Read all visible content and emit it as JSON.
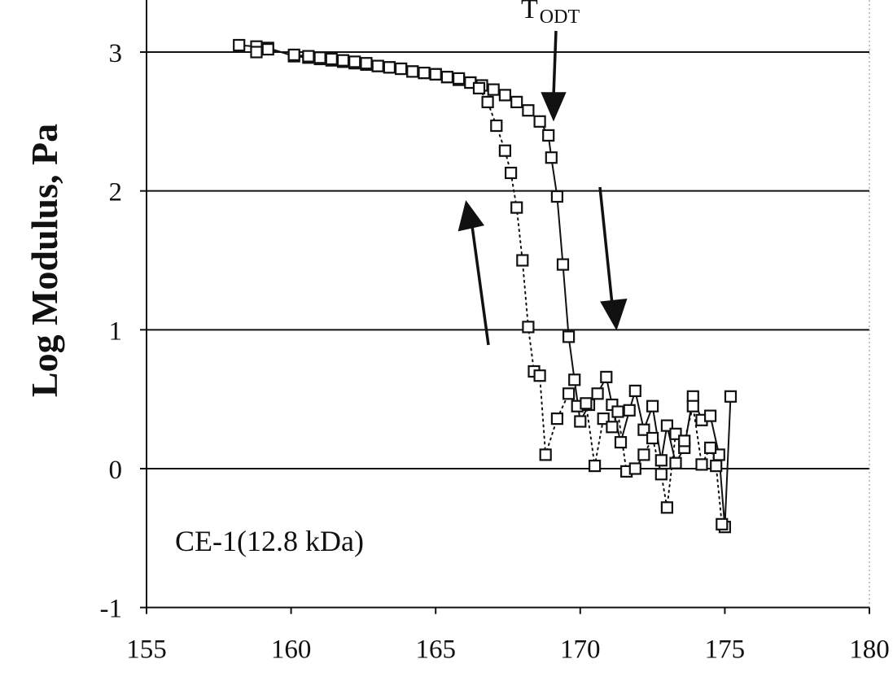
{
  "chart_data": {
    "type": "scatter",
    "ylabel": "Log Modulus, Pa",
    "xlabel": "",
    "xlim": [
      155,
      180
    ],
    "ylim": [
      -1,
      3.35
    ],
    "xticks": [
      "155",
      "160",
      "165",
      "170",
      "175",
      "180"
    ],
    "yticks": [
      "-1",
      "0",
      "1",
      "2",
      "3"
    ],
    "grid": "horizontal",
    "annotation": "CE-1(12.8 kDa)",
    "transition_label": {
      "main": "T",
      "sub": "ODT"
    },
    "series": [
      {
        "line": "solid",
        "x": [
          158.2,
          158.8,
          159.2,
          160.1,
          160.6,
          161.0,
          161.4,
          161.8,
          162.2,
          162.6,
          163.0,
          163.4,
          163.8,
          164.2,
          164.6,
          165.0,
          165.4,
          165.8,
          166.2,
          166.6,
          167.0,
          167.4,
          167.8,
          168.2,
          168.6,
          168.9,
          169.0,
          169.2,
          169.4,
          169.6,
          169.8,
          170.0,
          170.3,
          170.6,
          170.9,
          171.1,
          171.4,
          171.7,
          171.9,
          172.2,
          172.5,
          172.8,
          173.0,
          173.3,
          173.6,
          173.9,
          174.2,
          174.5,
          174.8,
          175.0,
          175.2
        ],
        "y": [
          3.05,
          3.04,
          3.03,
          2.97,
          2.96,
          2.95,
          2.94,
          2.93,
          2.92,
          2.91,
          2.9,
          2.89,
          2.88,
          2.86,
          2.85,
          2.84,
          2.82,
          2.8,
          2.78,
          2.76,
          2.73,
          2.69,
          2.64,
          2.58,
          2.5,
          2.4,
          2.24,
          1.96,
          1.47,
          0.95,
          0.64,
          0.34,
          0.46,
          0.54,
          0.66,
          0.46,
          0.19,
          0.42,
          0.56,
          0.28,
          0.45,
          0.06,
          0.31,
          0.04,
          0.15,
          0.52,
          0.35,
          0.38,
          0.1,
          -0.42,
          0.52
        ]
      },
      {
        "line": "dotted",
        "x": [
          158.8,
          159.2,
          160.1,
          160.6,
          161.0,
          161.4,
          161.8,
          162.2,
          162.6,
          163.0,
          163.4,
          163.8,
          164.2,
          164.6,
          165.0,
          165.4,
          165.8,
          166.2,
          166.5,
          166.8,
          167.1,
          167.4,
          167.6,
          167.8,
          168.0,
          168.2,
          168.4,
          168.6,
          168.8,
          169.2,
          169.6,
          169.9,
          170.2,
          170.5,
          170.8,
          171.1,
          171.3,
          171.6,
          171.9,
          172.2,
          172.5,
          172.8,
          173.0,
          173.3,
          173.6,
          173.9,
          174.2,
          174.5,
          174.7,
          174.9
        ],
        "y": [
          3.0,
          3.02,
          2.98,
          2.97,
          2.96,
          2.95,
          2.94,
          2.93,
          2.92,
          2.9,
          2.89,
          2.88,
          2.86,
          2.85,
          2.84,
          2.82,
          2.81,
          2.78,
          2.74,
          2.64,
          2.47,
          2.29,
          2.13,
          1.88,
          1.5,
          1.02,
          0.7,
          0.67,
          0.1,
          0.36,
          0.54,
          0.45,
          0.47,
          0.02,
          0.36,
          0.3,
          0.41,
          -0.02,
          0.0,
          0.1,
          0.22,
          -0.04,
          -0.28,
          0.25,
          0.2,
          0.45,
          0.03,
          0.15,
          0.02,
          -0.4
        ]
      }
    ]
  }
}
